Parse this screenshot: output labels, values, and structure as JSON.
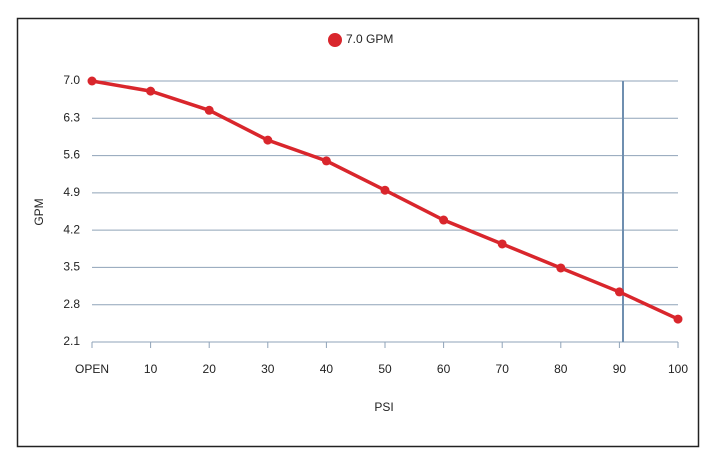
{
  "chart_data": {
    "type": "line",
    "categories": [
      "OPEN",
      "10",
      "20",
      "30",
      "40",
      "50",
      "60",
      "70",
      "80",
      "90",
      "100"
    ],
    "series": [
      {
        "name": "7.0 GPM",
        "color": "#d9262c",
        "values": [
          7.0,
          6.81,
          6.45,
          5.89,
          5.5,
          4.95,
          4.39,
          3.94,
          3.49,
          3.04,
          2.53
        ]
      }
    ],
    "x_label": "PSI",
    "y_label": "GPM",
    "ylim": [
      2.1,
      7.0
    ],
    "yticks": [
      2.1,
      2.8,
      3.5,
      4.2,
      4.9,
      5.6,
      6.3,
      {
        "value": 7.0,
        "label": "7.0"
      }
    ],
    "grid": true
  }
}
